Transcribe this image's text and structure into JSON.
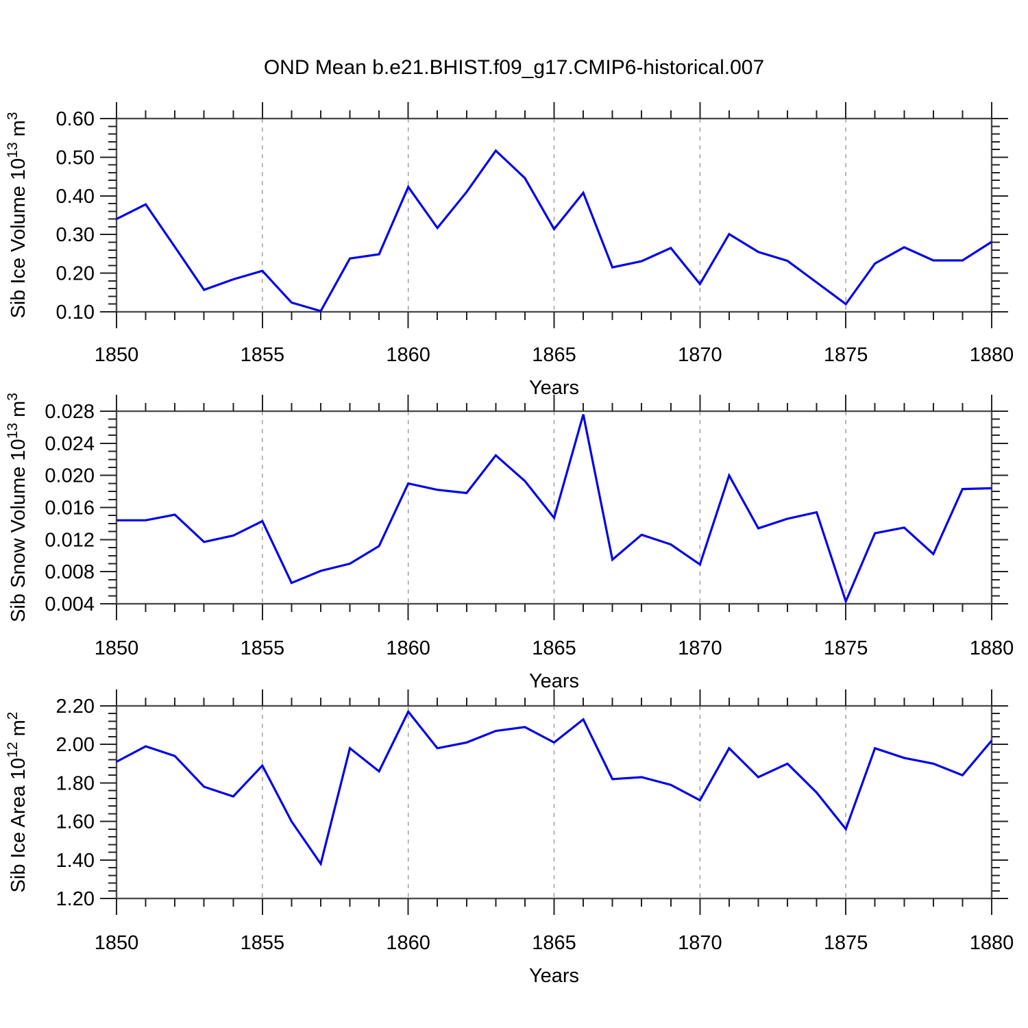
{
  "title": "OND Mean b.e21.BHIST.f09_g17.CMIP6-historical.007",
  "xlabel": "Years",
  "years": [
    1850,
    1851,
    1852,
    1853,
    1854,
    1855,
    1856,
    1857,
    1858,
    1859,
    1860,
    1861,
    1862,
    1863,
    1864,
    1865,
    1866,
    1867,
    1868,
    1869,
    1870,
    1871,
    1872,
    1873,
    1874,
    1875,
    1876,
    1877,
    1878,
    1879,
    1880
  ],
  "x_axis": {
    "lim": [
      1850,
      1880
    ],
    "major_ticks": [
      1850,
      1855,
      1860,
      1865,
      1870,
      1875,
      1880
    ],
    "major_labels": [
      "1850",
      "1855",
      "1860",
      "1865",
      "1870",
      "1875",
      "1880"
    ],
    "minor_step": 1,
    "gridline_years": [
      1855,
      1860,
      1865,
      1870,
      1875
    ]
  },
  "colors": {
    "line": "#0000EB",
    "frame": "#4d4d4d",
    "tick": "#222222",
    "grid": "#9a9a9a",
    "text": "#000000",
    "background": "#ffffff"
  },
  "chart_data": [
    {
      "type": "line",
      "name": "sib-ice-volume",
      "ylabel": "Sib Ice Volume 10¹³ m³",
      "ylabel_parts": [
        {
          "t": "Sib Ice Volume 10"
        },
        {
          "t": "13",
          "sup": true
        },
        {
          "t": " m"
        },
        {
          "t": "3",
          "sup": true
        }
      ],
      "xlabel": "Years",
      "ylim": [
        0.1,
        0.6
      ],
      "y_major_ticks": [
        {
          "value": 0.1,
          "label": "0.10"
        },
        {
          "value": 0.2,
          "label": "0.20"
        },
        {
          "value": 0.3,
          "label": "0.30"
        },
        {
          "value": 0.4,
          "label": "0.40"
        },
        {
          "value": 0.5,
          "label": "0.50"
        },
        {
          "value": 0.6,
          "label": "0.60"
        }
      ],
      "y_minor_step": 0.02,
      "values": [
        0.34,
        0.378,
        0.268,
        0.157,
        0.184,
        0.206,
        0.124,
        0.102,
        0.238,
        0.249,
        0.423,
        0.317,
        0.41,
        0.517,
        0.446,
        0.314,
        0.408,
        0.215,
        0.231,
        0.265,
        0.172,
        0.301,
        0.255,
        0.232,
        0.176,
        0.12,
        0.225,
        0.267,
        0.233,
        0.233,
        0.281
      ]
    },
    {
      "type": "line",
      "name": "sib-snow-volume",
      "ylabel": "Sib Snow Volume 10¹³ m³",
      "ylabel_parts": [
        {
          "t": "Sib Snow Volume 10"
        },
        {
          "t": "13",
          "sup": true
        },
        {
          "t": " m"
        },
        {
          "t": "3",
          "sup": true
        }
      ],
      "xlabel": "Years",
      "ylim": [
        0.004,
        0.028
      ],
      "y_major_ticks": [
        {
          "value": 0.004,
          "label": "0.004"
        },
        {
          "value": 0.008,
          "label": "0.008"
        },
        {
          "value": 0.012,
          "label": "0.012"
        },
        {
          "value": 0.016,
          "label": "0.016"
        },
        {
          "value": 0.02,
          "label": "0.020"
        },
        {
          "value": 0.024,
          "label": "0.024"
        },
        {
          "value": 0.028,
          "label": "0.028"
        }
      ],
      "y_minor_step": 0.001,
      "values": [
        0.0144,
        0.0144,
        0.0151,
        0.0117,
        0.0125,
        0.0143,
        0.0066,
        0.0081,
        0.009,
        0.0112,
        0.019,
        0.0182,
        0.0178,
        0.0225,
        0.0193,
        0.0147,
        0.0276,
        0.0095,
        0.0126,
        0.0114,
        0.0089,
        0.02,
        0.0134,
        0.0146,
        0.0154,
        0.0043,
        0.0128,
        0.0135,
        0.0102,
        0.0183,
        0.0184
      ]
    },
    {
      "type": "line",
      "name": "sib-ice-area",
      "ylabel": "Sib Ice Area 10¹² m²",
      "ylabel_parts": [
        {
          "t": "Sib Ice Area 10"
        },
        {
          "t": "12",
          "sup": true
        },
        {
          "t": " m"
        },
        {
          "t": "2",
          "sup": true
        }
      ],
      "xlabel": "Years",
      "ylim": [
        1.2,
        2.2
      ],
      "y_major_ticks": [
        {
          "value": 1.2,
          "label": "1.20"
        },
        {
          "value": 1.4,
          "label": "1.40"
        },
        {
          "value": 1.6,
          "label": "1.60"
        },
        {
          "value": 1.8,
          "label": "1.80"
        },
        {
          "value": 2.0,
          "label": "2.00"
        },
        {
          "value": 2.2,
          "label": "2.20"
        }
      ],
      "y_minor_step": 0.04,
      "values": [
        1.91,
        1.99,
        1.94,
        1.78,
        1.73,
        1.89,
        1.6,
        1.38,
        1.98,
        1.86,
        2.17,
        1.98,
        2.01,
        2.07,
        2.09,
        2.01,
        2.13,
        1.82,
        1.83,
        1.79,
        1.71,
        1.98,
        1.83,
        1.9,
        1.75,
        1.56,
        1.98,
        1.93,
        1.9,
        1.84,
        2.02
      ]
    }
  ]
}
